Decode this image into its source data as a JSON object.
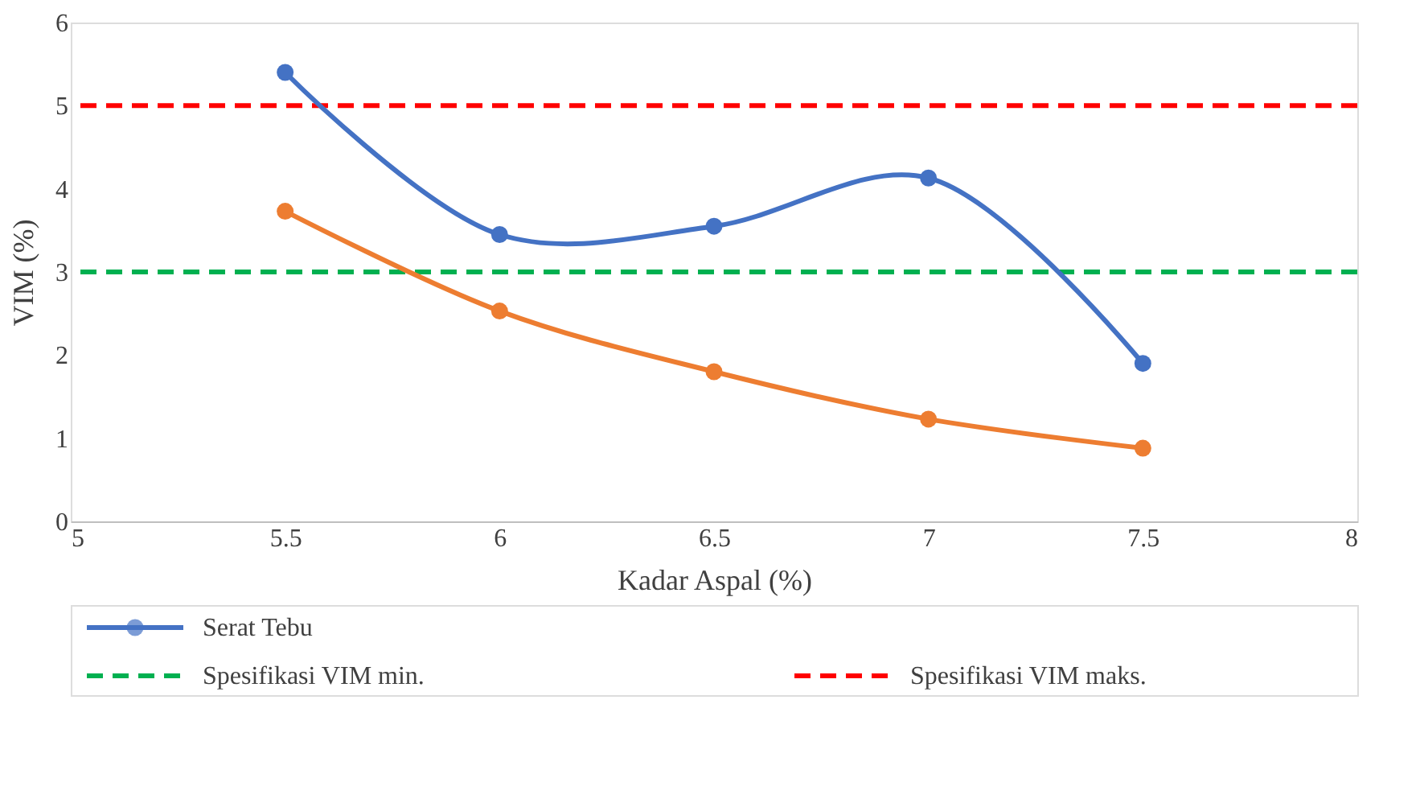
{
  "chart_data": {
    "type": "line",
    "xlabel": "Kadar Aspal (%)",
    "ylabel": "VIM (%)",
    "x": [
      5.5,
      6,
      6.5,
      7,
      7.5
    ],
    "series": [
      {
        "name": "Serat Tebu",
        "color": "#4472c4",
        "values": [
          5.4,
          3.45,
          3.55,
          4.13,
          1.9
        ]
      },
      {
        "color": "#ed7d31",
        "values": [
          3.73,
          2.53,
          1.8,
          1.23,
          0.88
        ]
      }
    ],
    "xlim": [
      5,
      8
    ],
    "xticks": [
      5,
      5.5,
      6,
      6.5,
      7,
      7.5,
      8
    ],
    "ylim": [
      0,
      6
    ],
    "yticks": [
      0,
      1,
      2,
      3,
      4,
      5,
      6
    ],
    "ref_lines": [
      {
        "axis": "y",
        "value": 3,
        "label": "Spesifikasi VIM min.",
        "color": "#00b050",
        "line_style": "dashed"
      },
      {
        "axis": "y",
        "value": 5,
        "label": "Spesifikasi VIM maks.",
        "color": "#ff0000",
        "line_style": "dashed"
      }
    ],
    "marker": "circle",
    "line_style": "solid",
    "grid": false,
    "legend": "bottom"
  }
}
